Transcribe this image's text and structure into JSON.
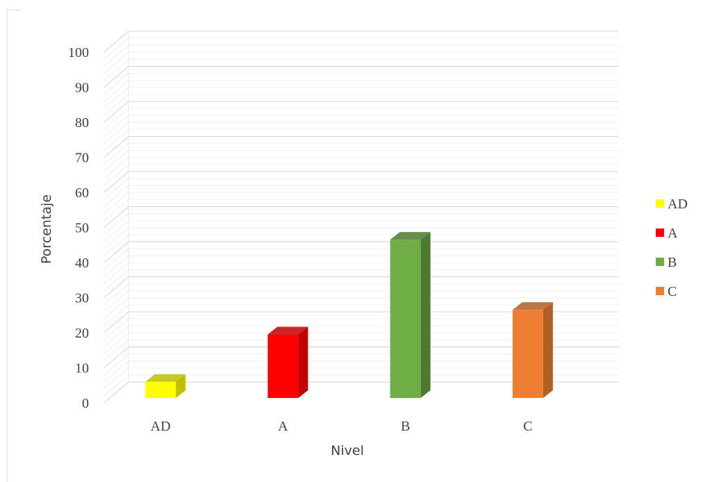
{
  "chart_data": {
    "type": "bar",
    "categories": [
      "AD",
      "A",
      "B",
      "C"
    ],
    "values": [
      6,
      19.5,
      46.5,
      26.5
    ],
    "colors": [
      "#FFFF00",
      "#FF0000",
      "#70AD47",
      "#ED7D31"
    ],
    "side_colors": [
      "#BFBF00",
      "#BF0000",
      "#4E7A30",
      "#B25E24"
    ],
    "xlabel": "Nivel",
    "ylabel": "Porcentaje",
    "ylim": [
      0,
      100
    ],
    "yticks": [
      0,
      10,
      20,
      30,
      40,
      50,
      60,
      70,
      80,
      90,
      100
    ],
    "grid": true,
    "minor_grid": true,
    "legend": {
      "placement": "right",
      "entries": [
        "AD",
        "A",
        "B",
        "C"
      ]
    },
    "style": "3d-column"
  }
}
